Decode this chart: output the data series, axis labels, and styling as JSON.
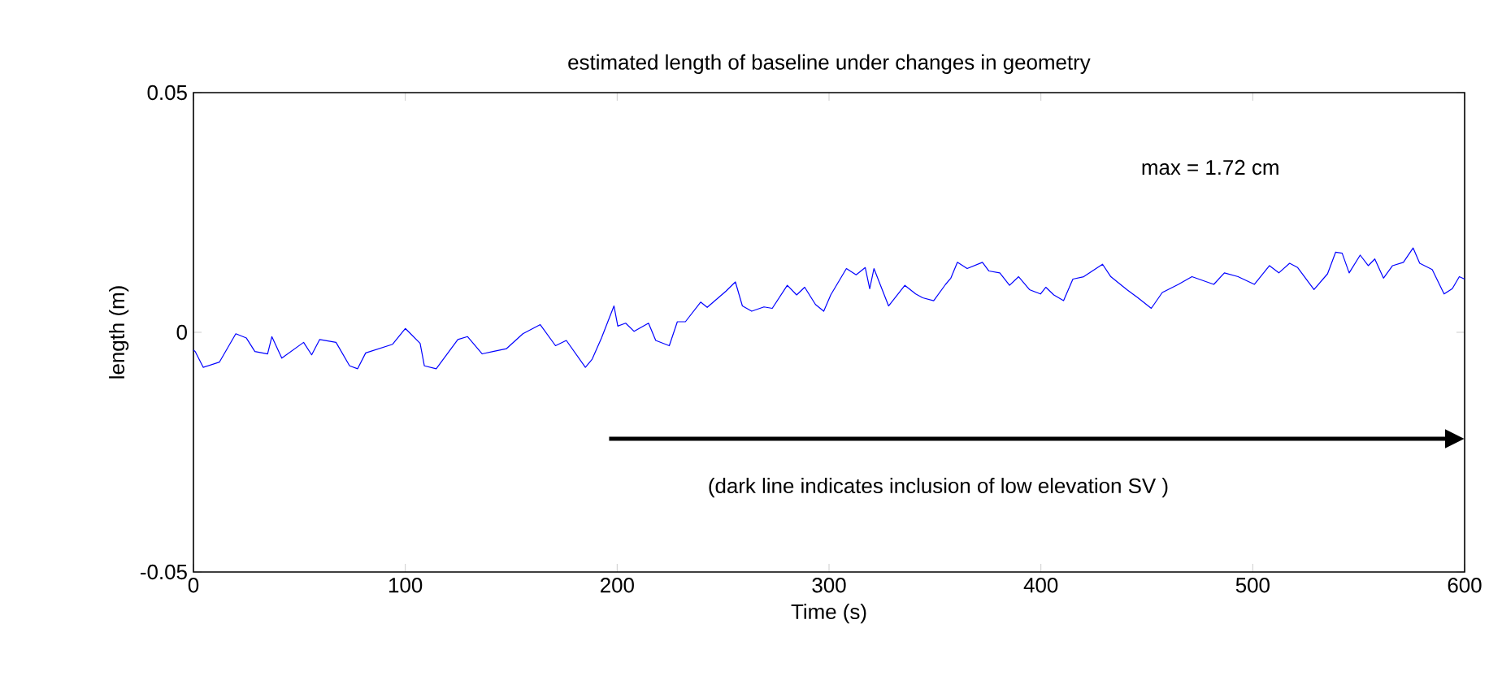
{
  "chart_data": {
    "type": "line",
    "title": "estimated length of baseline under changes in geometry",
    "xlabel": "Time (s)",
    "ylabel": "length (m)",
    "xlim": [
      0,
      600
    ],
    "ylim": [
      -0.05,
      0.05
    ],
    "xticks": [
      0,
      100,
      200,
      300,
      400,
      500,
      600
    ],
    "yticks": [
      -0.05,
      0,
      0.05
    ],
    "grid": false,
    "marker": "none",
    "line_style": "solid",
    "annotations": [
      "max = 1.72 cm",
      "(dark line indicates inclusion of low elevation SV )"
    ],
    "series": [
      {
        "color": "#0000ff",
        "x": [
          0,
          0.8,
          4.6,
          12.3,
          20,
          25,
          29,
          35,
          37,
          41.7,
          52,
          55.8,
          59.6,
          67.3,
          73.7,
          77.5,
          81.3,
          94,
          100,
          107,
          109,
          114.6,
          124.8,
          129.4,
          136.3,
          141.4,
          147.8,
          155.5,
          163.7,
          170.9,
          176,
          185,
          188.2,
          192.6,
          198.5,
          200.3,
          204,
          208,
          214.8,
          218.2,
          224.6,
          228.4,
          232.2,
          239.4,
          242.5,
          251.4,
          255.8,
          259.1,
          263.5,
          269.3,
          273.2,
          280.3,
          284.7,
          288.5,
          293.6,
          297.5,
          300.8,
          308.2,
          312.8,
          317.1,
          319.2,
          321.2,
          328.1,
          335.8,
          340.9,
          344.2,
          349.4,
          355,
          357.5,
          360.6,
          365.2,
          372.4,
          375.4,
          380.6,
          385.2,
          389.5,
          394.6,
          399.8,
          402.3,
          406.1,
          410.7,
          415.1,
          420.2,
          429.1,
          433,
          440.6,
          445.8,
          452.1,
          457.3,
          464.9,
          471.3,
          481.6,
          486.6,
          493.1,
          500.8,
          507.9,
          512.3,
          517.4,
          521.2,
          528.9,
          535.3,
          539.1,
          542.2,
          545.5,
          550.7,
          554.5,
          557.6,
          561.7,
          566,
          571.1,
          575.7,
          578.8,
          584.7,
          590.3,
          594.2,
          597.5,
          600
        ],
        "values": [
          -0.0037,
          -0.004,
          -0.0073,
          -0.0062,
          -0.0003,
          -0.0012,
          -0.004,
          -0.0045,
          -0.0009,
          -0.0054,
          -0.0021,
          -0.0047,
          -0.0015,
          -0.0021,
          -0.007,
          -0.0076,
          -0.0043,
          -0.0025,
          0.0008,
          -0.0023,
          -0.007,
          -0.0076,
          -0.0015,
          -0.0009,
          -0.0045,
          -0.004,
          -0.0034,
          -0.0003,
          0.0016,
          -0.0028,
          -0.0017,
          -0.0073,
          -0.0056,
          -0.0012,
          0.0055,
          0.0013,
          0.0019,
          0.0002,
          0.0019,
          -0.0017,
          -0.0028,
          0.0022,
          0.0022,
          0.0063,
          0.0052,
          0.0086,
          0.0105,
          0.0055,
          0.0044,
          0.0053,
          0.005,
          0.0098,
          0.0078,
          0.0094,
          0.0058,
          0.0044,
          0.0078,
          0.0133,
          0.012,
          0.0135,
          0.0091,
          0.0133,
          0.0055,
          0.0098,
          0.008,
          0.0072,
          0.0066,
          0.01,
          0.0113,
          0.0146,
          0.0133,
          0.0146,
          0.0128,
          0.0124,
          0.0098,
          0.0116,
          0.0089,
          0.008,
          0.0094,
          0.0078,
          0.0066,
          0.0111,
          0.0116,
          0.0142,
          0.0116,
          0.0089,
          0.0072,
          0.005,
          0.0083,
          0.01,
          0.0116,
          0.01,
          0.0124,
          0.0116,
          0.01,
          0.0139,
          0.0124,
          0.0144,
          0.0135,
          0.0089,
          0.0122,
          0.0167,
          0.0165,
          0.0124,
          0.0161,
          0.0139,
          0.0153,
          0.0113,
          0.0139,
          0.0146,
          0.0176,
          0.0144,
          0.0131,
          0.008,
          0.0091,
          0.0116,
          0.0111
        ]
      }
    ]
  }
}
